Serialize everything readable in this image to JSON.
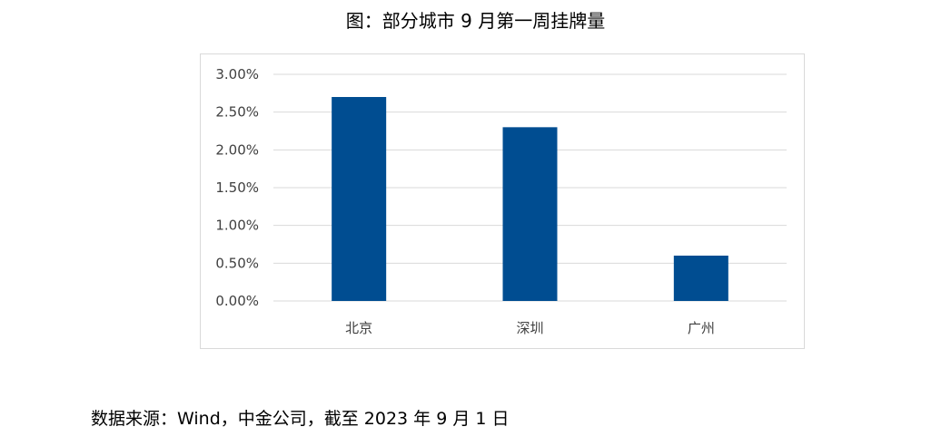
{
  "chart_data": {
    "type": "bar",
    "title": "图：部分城市 9 月第一周挂牌量",
    "categories": [
      "北京",
      "深圳",
      "广州"
    ],
    "values": [
      0.027,
      0.023,
      0.006
    ],
    "ylim": [
      0,
      0.03
    ],
    "yticks": [
      "0.00%",
      "0.50%",
      "1.00%",
      "1.50%",
      "2.00%",
      "2.50%",
      "3.00%"
    ],
    "xlabel": "",
    "ylabel": "",
    "grid": true,
    "legend": "none",
    "bar_color": "#004d91",
    "grid_color": "#d9d9d9"
  },
  "source": "数据来源：Wind，中金公司，截至 2023 年 9 月 1 日"
}
